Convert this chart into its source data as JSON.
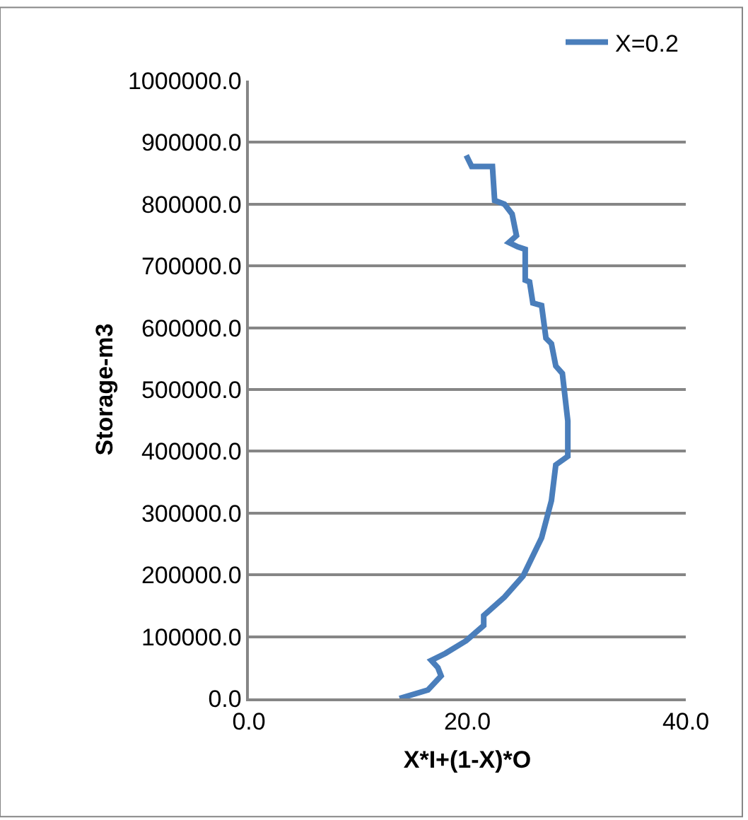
{
  "chart_data": {
    "type": "line",
    "xlabel": "X*I+(1-X)*O",
    "ylabel": "Storage-m3",
    "xlim": [
      0,
      40
    ],
    "xticks": [
      {
        "value": 0,
        "label": "0.0"
      },
      {
        "value": 20,
        "label": "20.0"
      },
      {
        "value": 40,
        "label": "40.0"
      }
    ],
    "ylim": [
      0,
      1000000
    ],
    "yticks": [
      {
        "value": 0,
        "label": "0.0"
      },
      {
        "value": 100000,
        "label": "100000.0"
      },
      {
        "value": 200000,
        "label": "200000.0"
      },
      {
        "value": 300000,
        "label": "300000.0"
      },
      {
        "value": 400000,
        "label": "400000.0"
      },
      {
        "value": 500000,
        "label": "500000.0"
      },
      {
        "value": 600000,
        "label": "600000.0"
      },
      {
        "value": 700000,
        "label": "700000.0"
      },
      {
        "value": 800000,
        "label": "800000.0"
      },
      {
        "value": 900000,
        "label": "900000.0"
      },
      {
        "value": 1000000,
        "label": "1000000.0"
      }
    ],
    "grid": "y",
    "legend": "top right",
    "marker": "none",
    "line_style": "solid",
    "series": [
      {
        "name": "X=0.2",
        "color": "#4a7ebb",
        "x": [
          13.8,
          16.4,
          17.6,
          17.3,
          16.7,
          18.0,
          19.9,
          21.5,
          21.5,
          23.4,
          25.1,
          26.8,
          27.7,
          28.1,
          29.2,
          29.2,
          28.7,
          28.1,
          27.7,
          27.2,
          26.8,
          26.0,
          25.7,
          25.3,
          25.3,
          24.6,
          23.8,
          24.5,
          24.1,
          23.4,
          22.5,
          22.3,
          20.4,
          19.9
        ],
        "values": [
          0,
          13700,
          36400,
          50000,
          61500,
          72900,
          93400,
          118000,
          134000,
          164000,
          198000,
          260000,
          320000,
          378000,
          392000,
          449000,
          526000,
          538000,
          574000,
          583000,
          636000,
          640000,
          674000,
          677000,
          727000,
          731000,
          738000,
          749000,
          784000,
          800000,
          806000,
          861000,
          861000,
          879000
        ]
      }
    ]
  }
}
